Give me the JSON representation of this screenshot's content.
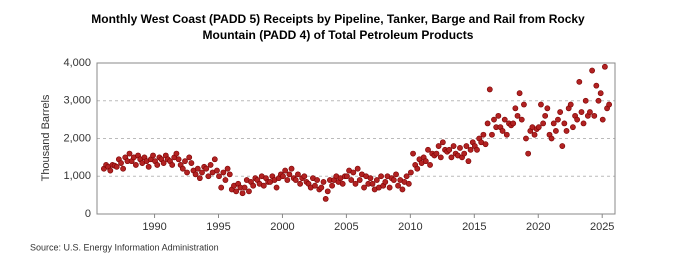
{
  "chart_data": {
    "type": "scatter",
    "title": [
      "Monthly West Coast (PADD 5) Receipts by Pipeline, Tanker, Barge and Rail from Rocky",
      "Mountain (PADD 4) of Total Petroleum Products"
    ],
    "y_label": "Thousand Barrels",
    "source": "Source: U.S. Energy Information Administration",
    "xlim": [
      1985.5,
      2026
    ],
    "ylim": [
      0,
      4000
    ],
    "xticks": [
      1990,
      1995,
      2000,
      2005,
      2010,
      2015,
      2020,
      2025
    ],
    "yticks": [
      0,
      {
        "value": 1000,
        "label": "1,000"
      },
      {
        "value": 2000,
        "label": "2,000"
      },
      {
        "value": 3000,
        "label": "3,000"
      },
      {
        "value": 4000,
        "label": "4,000"
      }
    ],
    "grid": true,
    "series": [
      {
        "color": "#b22222",
        "x": [
          1986.04,
          1986.21,
          1986.38,
          1986.54,
          1986.71,
          1986.88,
          1987.04,
          1987.21,
          1987.38,
          1987.54,
          1987.71,
          1987.88,
          1988.04,
          1988.21,
          1988.38,
          1988.54,
          1988.71,
          1988.88,
          1989.04,
          1989.21,
          1989.38,
          1989.54,
          1989.71,
          1989.88,
          1990.04,
          1990.21,
          1990.38,
          1990.54,
          1990.71,
          1990.88,
          1991.04,
          1991.21,
          1991.38,
          1991.54,
          1991.71,
          1991.88,
          1992.04,
          1992.21,
          1992.38,
          1992.54,
          1992.71,
          1992.88,
          1993.04,
          1993.21,
          1993.38,
          1993.54,
          1993.71,
          1993.88,
          1994.04,
          1994.21,
          1994.38,
          1994.54,
          1994.71,
          1994.88,
          1995.04,
          1995.21,
          1995.38,
          1995.54,
          1995.71,
          1995.88,
          1996.04,
          1996.21,
          1996.38,
          1996.54,
          1996.71,
          1996.88,
          1997.04,
          1997.21,
          1997.38,
          1997.54,
          1997.71,
          1997.88,
          1998.04,
          1998.21,
          1998.38,
          1998.54,
          1998.71,
          1998.88,
          1999.04,
          1999.21,
          1999.38,
          1999.54,
          1999.71,
          1999.88,
          2000.04,
          2000.21,
          2000.38,
          2000.54,
          2000.71,
          2000.88,
          2001.04,
          2001.21,
          2001.38,
          2001.54,
          2001.71,
          2001.88,
          2002.04,
          2002.21,
          2002.38,
          2002.54,
          2002.71,
          2002.88,
          2003.04,
          2003.21,
          2003.38,
          2003.54,
          2003.71,
          2003.88,
          2004.04,
          2004.21,
          2004.38,
          2004.54,
          2004.71,
          2004.88,
          2005.04,
          2005.21,
          2005.38,
          2005.54,
          2005.71,
          2005.88,
          2006.04,
          2006.21,
          2006.38,
          2006.54,
          2006.71,
          2006.88,
          2007.04,
          2007.21,
          2007.38,
          2007.54,
          2007.71,
          2007.88,
          2008.04,
          2008.21,
          2008.38,
          2008.54,
          2008.71,
          2008.88,
          2009.04,
          2009.21,
          2009.38,
          2009.54,
          2009.71,
          2009.88,
          2010.04,
          2010.21,
          2010.38,
          2010.54,
          2010.71,
          2010.88,
          2011.04,
          2011.21,
          2011.38,
          2011.54,
          2011.71,
          2011.88,
          2012.04,
          2012.21,
          2012.38,
          2012.54,
          2012.71,
          2012.88,
          2013.04,
          2013.21,
          2013.38,
          2013.54,
          2013.71,
          2013.88,
          2014.04,
          2014.21,
          2014.38,
          2014.54,
          2014.71,
          2014.88,
          2015.04,
          2015.21,
          2015.38,
          2015.54,
          2015.71,
          2015.88,
          2016.04,
          2016.21,
          2016.38,
          2016.54,
          2016.71,
          2016.88,
          2017.04,
          2017.21,
          2017.38,
          2017.54,
          2017.71,
          2017.88,
          2018.04,
          2018.21,
          2018.38,
          2018.54,
          2018.71,
          2018.88,
          2019.04,
          2019.21,
          2019.38,
          2019.54,
          2019.71,
          2019.88,
          2020.04,
          2020.21,
          2020.38,
          2020.54,
          2020.71,
          2020.88,
          2021.04,
          2021.21,
          2021.38,
          2021.54,
          2021.71,
          2021.88,
          2022.04,
          2022.21,
          2022.38,
          2022.54,
          2022.71,
          2022.88,
          2023.04,
          2023.21,
          2023.38,
          2023.54,
          2023.71,
          2023.88,
          2024.04,
          2024.21,
          2024.38,
          2024.54,
          2024.71,
          2024.88,
          2025.04,
          2025.21,
          2025.38,
          2025.54
        ],
        "values": [
          1200,
          1300,
          1250,
          1150,
          1300,
          1280,
          1250,
          1450,
          1350,
          1200,
          1500,
          1400,
          1600,
          1400,
          1500,
          1300,
          1550,
          1450,
          1350,
          1500,
          1400,
          1250,
          1450,
          1550,
          1400,
          1300,
          1500,
          1450,
          1350,
          1550,
          1450,
          1400,
          1300,
          1500,
          1600,
          1450,
          1300,
          1200,
          1400,
          1100,
          1500,
          1350,
          1150,
          1050,
          1200,
          950,
          1100,
          1250,
          1200,
          1000,
          1300,
          1100,
          1450,
          1150,
          1000,
          700,
          1100,
          900,
          1200,
          1050,
          650,
          750,
          600,
          800,
          700,
          550,
          700,
          900,
          600,
          850,
          750,
          950,
          900,
          800,
          1000,
          750,
          950,
          850,
          850,
          1000,
          900,
          700,
          950,
          1050,
          1000,
          1150,
          900,
          1050,
          1200,
          950,
          900,
          1050,
          800,
          950,
          1000,
          850,
          800,
          700,
          950,
          750,
          900,
          650,
          700,
          850,
          400,
          600,
          900,
          750,
          900,
          1000,
          850,
          950,
          800,
          1000,
          1000,
          1150,
          900,
          1100,
          800,
          1200,
          900,
          1050,
          700,
          1000,
          800,
          950,
          800,
          650,
          900,
          700,
          1000,
          750,
          850,
          1000,
          700,
          950,
          900,
          1050,
          750,
          900,
          650,
          850,
          1000,
          800,
          1100,
          1600,
          1300,
          1200,
          1450,
          1350,
          1500,
          1400,
          1700,
          1300,
          1600,
          1550,
          1600,
          1800,
          1500,
          1900,
          1700,
          1650,
          1700,
          1500,
          1800,
          1600,
          1550,
          1750,
          1500,
          1600,
          1800,
          1400,
          1700,
          1900,
          1800,
          1700,
          2000,
          1900,
          2100,
          1850,
          2400,
          3300,
          2100,
          2500,
          2300,
          2600,
          2300,
          2200,
          2500,
          2100,
          2400,
          2350,
          2400,
          2800,
          2600,
          3200,
          2500,
          2900,
          2000,
          1600,
          2200,
          2300,
          2100,
          2250,
          2300,
          2900,
          2400,
          2600,
          2800,
          2100,
          2000,
          2400,
          2200,
          2500,
          2700,
          1800,
          2400,
          2200,
          2800,
          2900,
          2300,
          2600,
          2500,
          3500,
          2700,
          2400,
          3000,
          2600,
          2700,
          3800,
          2600,
          3400,
          3000,
          3200,
          2500,
          3900,
          2800,
          2900
        ]
      }
    ]
  }
}
